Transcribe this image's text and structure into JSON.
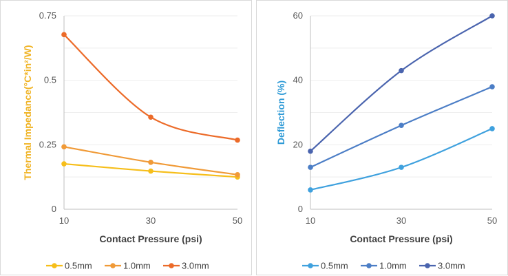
{
  "chart_data": [
    {
      "type": "line",
      "title": "",
      "xlabel": "Contact Pressure (psi)",
      "ylabel": "Thermal Impedance(°C*in²/W)",
      "ylabel_color": "#F0B323",
      "x": [
        10,
        30,
        50
      ],
      "x_ticks": [
        "10",
        "30",
        "50"
      ],
      "ylim": [
        0,
        0.75
      ],
      "y_ticks": [
        "0",
        "0.25",
        "0.5",
        "0.75"
      ],
      "grid": true,
      "smooth": true,
      "legend": "bottom",
      "series": [
        {
          "name": "0.5mm",
          "color": "#F6BE1A",
          "values": [
            0.176,
            0.148,
            0.125
          ]
        },
        {
          "name": "1.0mm",
          "color": "#F09A37",
          "values": [
            0.242,
            0.182,
            0.134
          ]
        },
        {
          "name": "3.0mm",
          "color": "#EC6B29",
          "values": [
            0.677,
            0.357,
            0.268
          ]
        }
      ]
    },
    {
      "type": "line",
      "title": "",
      "xlabel": "Contact Pressure (psi)",
      "ylabel": "Deflection (%)",
      "ylabel_color": "#2E9AD6",
      "x": [
        10,
        30,
        50
      ],
      "x_ticks": [
        "10",
        "30",
        "50"
      ],
      "ylim": [
        0,
        60
      ],
      "y_ticks": [
        "0",
        "20",
        "40",
        "60"
      ],
      "grid": true,
      "smooth": true,
      "legend": "bottom",
      "series": [
        {
          "name": "0.5mm",
          "color": "#3FA1DE",
          "values": [
            6,
            13,
            25
          ]
        },
        {
          "name": "1.0mm",
          "color": "#4C7EC6",
          "values": [
            13,
            26,
            38
          ]
        },
        {
          "name": "3.0mm",
          "color": "#4A64AE",
          "values": [
            18,
            43,
            60
          ]
        }
      ]
    }
  ]
}
